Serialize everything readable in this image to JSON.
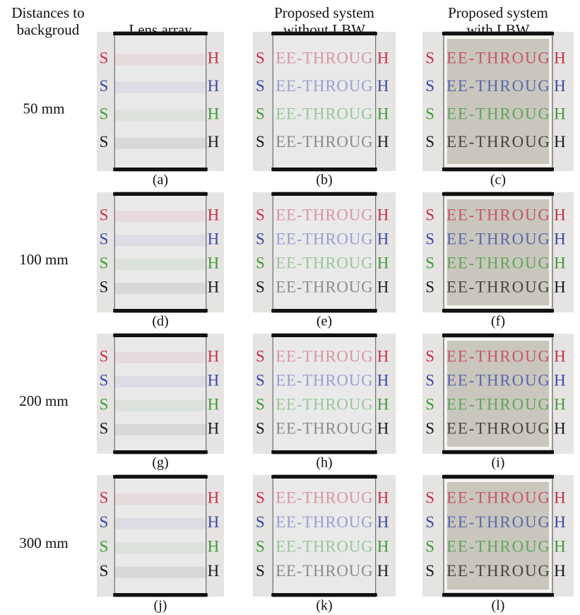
{
  "corner_header": [
    "Distances to",
    "backgroud"
  ],
  "columns": [
    [
      "Lens array"
    ],
    [
      "Proposed system",
      "without LBW"
    ],
    [
      "Proposed system",
      "with LBW"
    ]
  ],
  "rows": [
    {
      "label": "50 mm",
      "captions": [
        "(a)",
        "(b)",
        "(c)"
      ]
    },
    {
      "label": "100 mm",
      "captions": [
        "(d)",
        "(e)",
        "(f)"
      ]
    },
    {
      "label": "200 mm",
      "captions": [
        "(g)",
        "(h)",
        "(i)"
      ]
    },
    {
      "label": "300 mm",
      "captions": [
        "(j)",
        "(k)",
        "(l)"
      ]
    }
  ],
  "photo_text": {
    "left": "S",
    "middle": "EE-THROUG",
    "right": "H"
  },
  "letter_colors": [
    "#c8304a",
    "#3a48a8",
    "#3e9a3a",
    "#1a1a1a"
  ]
}
